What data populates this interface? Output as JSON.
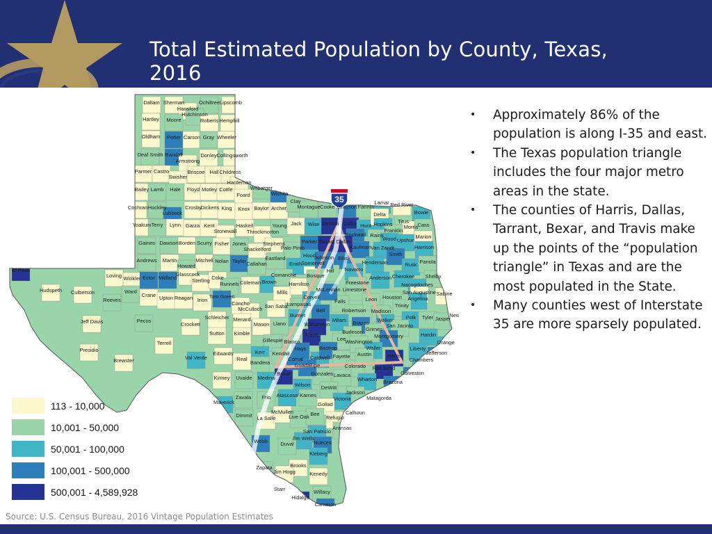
{
  "header": {
    "title": "Total Estimated Population by County, Texas, 2016",
    "colors": {
      "background": "#213073",
      "star": "#b39a60"
    }
  },
  "bullets": [
    "Approximately 86% of the population is along I-35 and east.",
    "The Texas population triangle includes the four major metro areas in the state.",
    "The counties of Harris, Dallas, Tarrant, Bexar, and Travis make up the points of the “population triangle” in Texas and are the most populated in the State.",
    "Many counties west of Interstate 35 are more sparsely populated."
  ],
  "legend": [
    {
      "label": "113 - 10,000",
      "color": "#fbf8cd"
    },
    {
      "label": "10,001 - 50,000",
      "color": "#9ad5aa"
    },
    {
      "label": "50,001 - 100,000",
      "color": "#41b4c5"
    },
    {
      "label": "100,001 - 500,000",
      "color": "#2c7fb8"
    },
    {
      "label": "500,001 - 4,589,928",
      "color": "#253494"
    }
  ],
  "map": {
    "interstate_label": "35",
    "counties": [
      "Dallam",
      "Sherman",
      "Hansford",
      "Ochiltree",
      "Lipscomb",
      "Hutchinson",
      "Hartley",
      "Moore",
      "Roberts",
      "Hemphill",
      "Oldham",
      "Potter",
      "Carson",
      "Gray",
      "Wheeler",
      "Deaf Smith",
      "Randall",
      "Armstrong",
      "Donley",
      "Collingsworth",
      "Parmer",
      "Castro",
      "Swisher",
      "Briscoe",
      "Hall",
      "Childress",
      "Hardeman",
      "Bailey",
      "Lamb",
      "Hale",
      "Floyd",
      "Motley",
      "Cottle",
      "Foard",
      "Wilbarger",
      "Wichita",
      "Cochran",
      "Hockley",
      "Lubbock",
      "Crosby",
      "Dickens",
      "King",
      "Knox",
      "Baylor",
      "Archer",
      "Clay",
      "Montague",
      "Cooke",
      "Grayson",
      "Fannin",
      "Lamar",
      "Red River",
      "Bowie",
      "Yoakum",
      "Terry",
      "Lynn",
      "Garza",
      "Kent",
      "Stonewall",
      "Haskell",
      "Throckmorton",
      "Young",
      "Jack",
      "Wise",
      "Denton",
      "Collin",
      "Hunt",
      "Delta",
      "Hopkins",
      "Titus",
      "Morris",
      "Cass",
      "Franklin",
      "Rockwall",
      "Rains",
      "Wood",
      "Upshur",
      "Marion",
      "Gaines",
      "Dawson",
      "Borden",
      "Scurry",
      "Fisher",
      "Jones",
      "Shackelford",
      "Stephens",
      "Palo Pinto",
      "Parker",
      "Tarrant",
      "Kaufman",
      "Van Zandt",
      "Smith",
      "Harrison",
      "Andrews",
      "Martin",
      "Howard",
      "Mitchell",
      "Nolan",
      "Taylor",
      "Callahan",
      "Eastland",
      "Erath",
      "Somervell",
      "Hood",
      "Ellis",
      "Henderson",
      "Rusk",
      "Panola",
      "El Paso",
      "Loving",
      "Winkler",
      "Ector",
      "Midland",
      "Glasscock",
      "Sterling",
      "Coke",
      "Runnels",
      "Coleman",
      "Brown",
      "Comanche",
      "Navarro",
      "Anderson",
      "Cherokee",
      "Shelby",
      "Hudspeth",
      "Culberson",
      "Reeves",
      "Ward",
      "Crane",
      "Upton",
      "Reagan",
      "Irion",
      "Tom Green",
      "Concho",
      "McCulloch",
      "Mills",
      "Hamilton",
      "Freestone",
      "Limestone",
      "Nacogdoches",
      "San Augustine",
      "Sabine",
      "Angelina",
      "Houston",
      "Trinity",
      "Polk",
      "Tyler",
      "Jasper",
      "Newton",
      "Jeff Davis",
      "Pecos",
      "Crockett",
      "Schleicher",
      "Menard",
      "Mason",
      "Llano",
      "San Saba",
      "Lampasas",
      "Coryell",
      "Bell",
      "Falls",
      "Leon",
      "Robertson",
      "Madison",
      "Walker",
      "San Jacinto",
      "Hardin",
      "Orange",
      "Jefferson",
      "Liberty",
      "Chambers",
      "Presidio",
      "Brewster",
      "Terrell",
      "Val Verde",
      "Sutton",
      "Kimble",
      "Gillespie",
      "Burnet",
      "Blanco",
      "Travis",
      "Williamson",
      "Milam",
      "Brazos",
      "Grimes",
      "Montgomery",
      "Burleson",
      "Lee",
      "Washington",
      "Waller",
      "Harris",
      "Fort Bend",
      "Galveston",
      "Brazoria",
      "Kerr",
      "Kendall",
      "Bandera",
      "Real",
      "Edwards",
      "Kinney",
      "Uvalde",
      "Medina",
      "Bexar",
      "Comal",
      "Hays",
      "Caldwell",
      "Bastrop",
      "Fayette",
      "Colorado",
      "Austin",
      "Wharton",
      "Matagorda",
      "Lavaca",
      "Gonzales",
      "Guadalupe",
      "Wilson",
      "DeWitt",
      "Jackson",
      "Victoria",
      "Calhoun",
      "Goliad",
      "Karnes",
      "Atascosa",
      "Frio",
      "Zavala",
      "Maverick",
      "Dimmit",
      "La Salle",
      "McMullen",
      "Live Oak",
      "Bee",
      "Refugio",
      "Aransas",
      "San Patricio",
      "Nueces",
      "Jim Wells",
      "Duval",
      "Webb",
      "Kleberg",
      "Brooks",
      "Jim Hogg",
      "Zapata",
      "Kenedy",
      "Starr",
      "Hidalgo",
      "Willacy",
      "Cameron",
      "Bosque",
      "Hill",
      "McLennan",
      "Johnson",
      "Dallas"
    ]
  },
  "footer": {
    "source": "Source: U.S. Census Bureau, 2016 Vintage Population Estimates"
  }
}
